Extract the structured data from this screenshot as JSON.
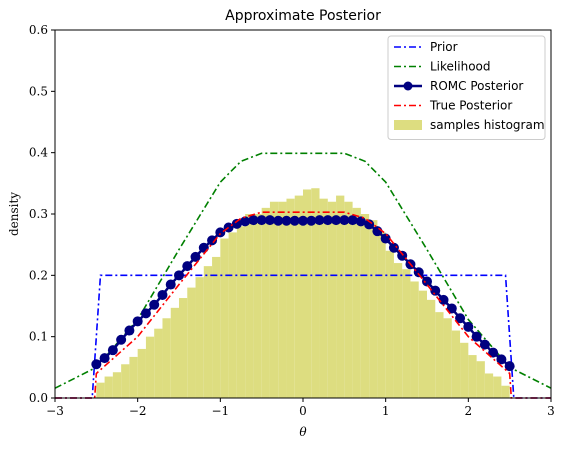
{
  "chart_data": {
    "type": "line",
    "title": "Approximate Posterior",
    "xlabel": "θ",
    "ylabel": "density",
    "xlim": [
      -3,
      3
    ],
    "ylim": [
      0,
      0.6
    ],
    "xticks": [
      -3,
      -2,
      -1,
      0,
      1,
      2,
      3
    ],
    "xtick_labels": [
      "−3",
      "−2",
      "−1",
      "0",
      "1",
      "2",
      "3"
    ],
    "yticks": [
      0.0,
      0.1,
      0.2,
      0.3,
      0.4,
      0.5,
      0.6
    ],
    "ytick_labels": [
      "0.0",
      "0.1",
      "0.2",
      "0.3",
      "0.4",
      "0.5",
      "0.6"
    ],
    "grid": false,
    "legend_position": "top-right",
    "series": [
      {
        "name": "Prior",
        "style": "dashdot",
        "color": "#0000ff",
        "x": [
          -3.0,
          -2.55,
          -2.5,
          -2.45,
          2.45,
          2.5,
          2.55,
          3.0
        ],
        "y": [
          0.0,
          0.0,
          0.1,
          0.2,
          0.2,
          0.1,
          0.0,
          0.0
        ]
      },
      {
        "name": "Likelihood",
        "style": "dashdot",
        "color": "#008000",
        "x": [
          -3.0,
          -2.5,
          -2.0,
          -1.5,
          -1.0,
          -0.75,
          -0.5,
          0.0,
          0.5,
          0.75,
          1.0,
          1.5,
          2.0,
          2.5,
          3.0
        ],
        "y": [
          0.016,
          0.05,
          0.128,
          0.242,
          0.352,
          0.386,
          0.399,
          0.399,
          0.399,
          0.386,
          0.352,
          0.242,
          0.128,
          0.05,
          0.016
        ]
      },
      {
        "name": "ROMC Posterior",
        "style": "solid-markers",
        "color": "#000080",
        "x": [
          -2.5,
          -2.4,
          -2.3,
          -2.2,
          -2.1,
          -2.0,
          -1.9,
          -1.8,
          -1.7,
          -1.6,
          -1.5,
          -1.4,
          -1.3,
          -1.2,
          -1.1,
          -1.0,
          -0.9,
          -0.8,
          -0.7,
          -0.6,
          -0.5,
          -0.4,
          -0.3,
          -0.2,
          -0.1,
          0.0,
          0.1,
          0.2,
          0.3,
          0.4,
          0.5,
          0.6,
          0.7,
          0.8,
          0.9,
          1.0,
          1.1,
          1.2,
          1.3,
          1.4,
          1.5,
          1.6,
          1.7,
          1.8,
          1.9,
          2.0,
          2.1,
          2.2,
          2.3,
          2.4,
          2.5
        ],
        "y": [
          0.055,
          0.065,
          0.078,
          0.095,
          0.11,
          0.125,
          0.138,
          0.152,
          0.168,
          0.185,
          0.2,
          0.215,
          0.23,
          0.245,
          0.257,
          0.27,
          0.278,
          0.284,
          0.288,
          0.29,
          0.29,
          0.29,
          0.289,
          0.289,
          0.289,
          0.289,
          0.289,
          0.29,
          0.29,
          0.29,
          0.29,
          0.29,
          0.288,
          0.283,
          0.272,
          0.26,
          0.245,
          0.232,
          0.218,
          0.205,
          0.19,
          0.175,
          0.16,
          0.146,
          0.13,
          0.116,
          0.1,
          0.087,
          0.074,
          0.063,
          0.052
        ]
      },
      {
        "name": "True Posterior",
        "style": "dashdot",
        "color": "#ff0000",
        "x": [
          -3.0,
          -2.52,
          -2.5,
          -2.0,
          -1.5,
          -1.0,
          -0.75,
          -0.5,
          0.0,
          0.5,
          0.75,
          1.0,
          1.5,
          2.0,
          2.5,
          2.52,
          3.0
        ],
        "y": [
          0.0,
          0.0,
          0.04,
          0.1,
          0.185,
          0.268,
          0.293,
          0.303,
          0.303,
          0.303,
          0.293,
          0.268,
          0.185,
          0.1,
          0.04,
          0.0,
          0.0
        ]
      }
    ],
    "histogram": {
      "name": "samples histogram",
      "color": "#dddd80",
      "bin_start": -2.5,
      "bin_width": 0.1,
      "values": [
        0.025,
        0.035,
        0.042,
        0.055,
        0.067,
        0.08,
        0.1,
        0.113,
        0.13,
        0.147,
        0.163,
        0.18,
        0.197,
        0.215,
        0.23,
        0.26,
        0.27,
        0.28,
        0.3,
        0.3,
        0.31,
        0.32,
        0.32,
        0.325,
        0.33,
        0.34,
        0.342,
        0.325,
        0.32,
        0.33,
        0.32,
        0.31,
        0.3,
        0.29,
        0.27,
        0.24,
        0.22,
        0.21,
        0.19,
        0.175,
        0.16,
        0.14,
        0.13,
        0.11,
        0.09,
        0.07,
        0.06,
        0.04,
        0.035,
        0.02
      ]
    },
    "legend": [
      "Prior",
      "Likelihood",
      "ROMC Posterior",
      "True Posterior",
      "samples histogram"
    ]
  }
}
